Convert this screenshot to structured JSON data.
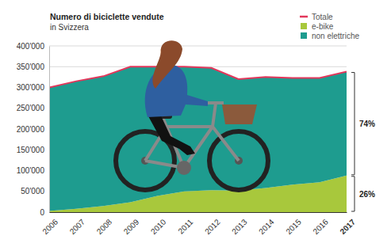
{
  "chart_data": {
    "type": "area",
    "title": "Numero di biciclette vendute",
    "subtitle": "in Svizzera",
    "categories": [
      "2006",
      "2007",
      "2008",
      "2009",
      "2010",
      "2011",
      "2012",
      "2013",
      "2014",
      "2015",
      "2016",
      "2017"
    ],
    "series": [
      {
        "name": "Totale",
        "color": "#e2375b",
        "type": "line",
        "values": [
          300000,
          315000,
          327000,
          350000,
          350000,
          350000,
          347000,
          320000,
          325000,
          323000,
          323000,
          338000
        ]
      },
      {
        "name": "e-bike",
        "color": "#a8c83c",
        "type": "area",
        "values": [
          3000,
          8000,
          15000,
          24000,
          39000,
          50000,
          53000,
          52000,
          58000,
          66000,
          72000,
          88000
        ]
      },
      {
        "name": "non elettriche",
        "color": "#1e9c8f",
        "type": "area",
        "values": [
          297000,
          307000,
          312000,
          326000,
          311000,
          300000,
          294000,
          268000,
          267000,
          257000,
          251000,
          250000
        ]
      }
    ],
    "stacked": true,
    "ylim": [
      0,
      400000
    ],
    "yticks": [
      0,
      {
        "value": 50000,
        "label": "50'000"
      },
      {
        "value": 100000,
        "label": "100'000"
      },
      {
        "value": 150000,
        "label": "150'000"
      },
      {
        "value": 200000,
        "label": "200'000"
      },
      {
        "value": 250000,
        "label": "250'000"
      },
      {
        "value": 300000,
        "label": "300'000"
      },
      {
        "value": 350000,
        "label": "350'000"
      },
      {
        "value": 400000,
        "label": "400'000"
      }
    ],
    "grid": true,
    "legend": "top-right",
    "annotations": [
      "74%",
      "26%"
    ]
  }
}
